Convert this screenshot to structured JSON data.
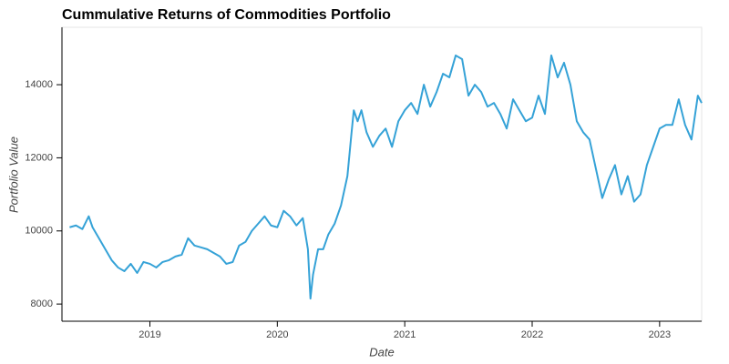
{
  "chart_data": {
    "type": "line",
    "title": "Cummulative Returns of Commodities Portfolio",
    "x_label": "Date",
    "y_label": "Portfolio Value",
    "xlim": [
      2018.31,
      2023.33
    ],
    "xticks": [
      2019,
      2020,
      2021,
      2022,
      2023
    ],
    "ylim": [
      7530,
      15570
    ],
    "yticks": [
      8000,
      10000,
      12000,
      14000
    ],
    "x": [
      2018.37,
      2018.42,
      2018.47,
      2018.52,
      2018.55,
      2018.6,
      2018.65,
      2018.7,
      2018.75,
      2018.8,
      2018.85,
      2018.9,
      2018.95,
      2019.0,
      2019.05,
      2019.1,
      2019.15,
      2019.2,
      2019.25,
      2019.3,
      2019.35,
      2019.4,
      2019.45,
      2019.5,
      2019.55,
      2019.6,
      2019.65,
      2019.7,
      2019.75,
      2019.8,
      2019.85,
      2019.9,
      2019.95,
      2020.0,
      2020.05,
      2020.1,
      2020.15,
      2020.2,
      2020.24,
      2020.26,
      2020.28,
      2020.32,
      2020.36,
      2020.4,
      2020.45,
      2020.5,
      2020.55,
      2020.58,
      2020.6,
      2020.63,
      2020.66,
      2020.7,
      2020.75,
      2020.8,
      2020.85,
      2020.9,
      2020.95,
      2021.0,
      2021.05,
      2021.1,
      2021.15,
      2021.2,
      2021.25,
      2021.3,
      2021.35,
      2021.4,
      2021.45,
      2021.5,
      2021.55,
      2021.6,
      2021.65,
      2021.7,
      2021.75,
      2021.8,
      2021.85,
      2021.9,
      2021.95,
      2022.0,
      2022.05,
      2022.1,
      2022.15,
      2022.2,
      2022.25,
      2022.3,
      2022.35,
      2022.4,
      2022.45,
      2022.5,
      2022.55,
      2022.6,
      2022.65,
      2022.7,
      2022.75,
      2022.8,
      2022.85,
      2022.9,
      2022.95,
      2023.0,
      2023.05,
      2023.1,
      2023.15,
      2023.2,
      2023.25,
      2023.3,
      2023.33
    ],
    "series": [
      {
        "name": "Portfolio Value",
        "color": "#35a2d7",
        "values": [
          10100,
          10150,
          10050,
          10400,
          10100,
          9800,
          9500,
          9200,
          9000,
          8900,
          9100,
          8850,
          9150,
          9100,
          9000,
          9150,
          9200,
          9300,
          9350,
          9800,
          9600,
          9550,
          9500,
          9400,
          9300,
          9100,
          9150,
          9600,
          9700,
          10000,
          10200,
          10400,
          10150,
          10100,
          10550,
          10400,
          10150,
          10350,
          9500,
          8150,
          8800,
          9500,
          9500,
          9900,
          10200,
          10700,
          11500,
          12600,
          13300,
          13000,
          13300,
          12700,
          12300,
          12600,
          12800,
          12300,
          13000,
          13300,
          13500,
          13200,
          14000,
          13400,
          13800,
          14300,
          14200,
          14800,
          14700,
          13700,
          14000,
          13800,
          13400,
          13500,
          13200,
          12800,
          13600,
          13300,
          13000,
          13100,
          13700,
          13200,
          14800,
          14200,
          14600,
          14000,
          13000,
          12700,
          12500,
          11700,
          10900,
          11400,
          11800,
          11000,
          11500,
          10800,
          11000,
          11800,
          12300,
          12800,
          12900,
          12900,
          13600,
          12900,
          12500,
          13700,
          13500
        ]
      }
    ]
  }
}
